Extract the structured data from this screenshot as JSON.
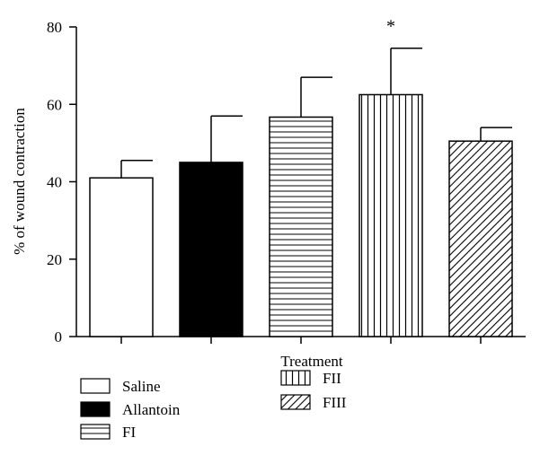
{
  "chart_data": {
    "type": "bar",
    "title": "",
    "xlabel": "Treatment",
    "ylabel": "% of wound contraction",
    "ylim": [
      0,
      80
    ],
    "yticks": [
      0,
      20,
      40,
      60,
      80
    ],
    "grid": false,
    "legend_position": "bottom-left",
    "categories": [
      "Saline",
      "Allantoin",
      "FI",
      "FII",
      "FIII"
    ],
    "values": [
      41,
      45,
      56.7,
      62.5,
      50.5
    ],
    "error_upper": [
      45.5,
      57,
      67,
      74.5,
      54
    ],
    "patterns": [
      "none",
      "solid",
      "horizontal",
      "vertical",
      "diagonal"
    ],
    "annotations": [
      {
        "category": "FII",
        "text": "*"
      }
    ]
  }
}
